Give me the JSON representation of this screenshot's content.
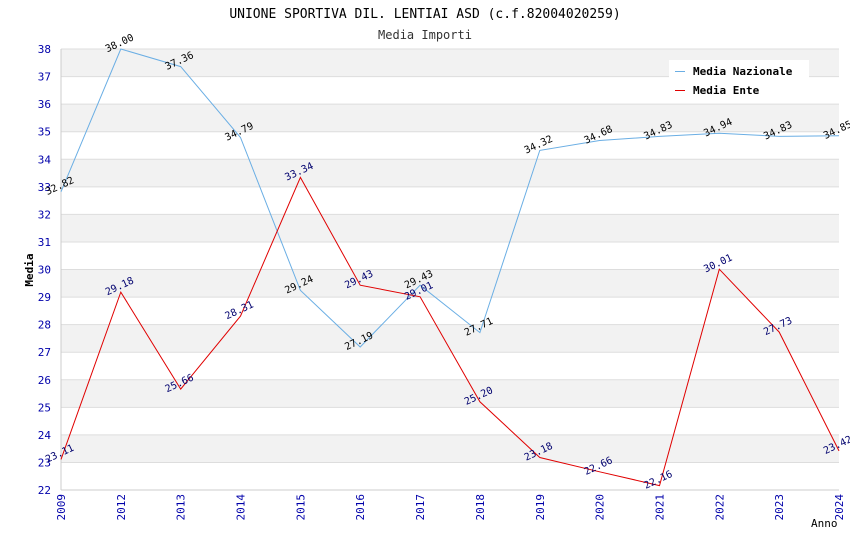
{
  "chart_data": {
    "type": "line",
    "title": "UNIONE SPORTIVA DIL. LENTIAI ASD (c.f.82004020259)",
    "subtitle": "Media Importi",
    "ylabel": "Media",
    "xlabel": "Anno",
    "categories": [
      "2009",
      "2012",
      "2013",
      "2014",
      "2015",
      "2016",
      "2017",
      "2018",
      "2019",
      "2020",
      "2021",
      "2022",
      "2023",
      "2024"
    ],
    "ylim": [
      22,
      38
    ],
    "yticks": [
      "22",
      "23",
      "24",
      "25",
      "26",
      "27",
      "28",
      "29",
      "30",
      "31",
      "32",
      "33",
      "34",
      "35",
      "36",
      "37",
      "38"
    ],
    "grid": true,
    "legend_position": "top-right",
    "series": [
      {
        "name": "Media Nazionale",
        "color": "#6aaee4",
        "label_color": "#000000",
        "values": [
          32.82,
          38.0,
          37.36,
          34.79,
          29.24,
          27.19,
          29.43,
          27.71,
          34.32,
          34.68,
          34.83,
          34.94,
          34.83,
          34.85
        ],
        "labels": [
          "32.82",
          "38.00",
          "37.36",
          "34.79",
          "29.24",
          "27.19",
          "29.43",
          "27.71",
          "34.32",
          "34.68",
          "34.83",
          "34.94",
          "34.83",
          "34.85"
        ]
      },
      {
        "name": "Media Ente",
        "color": "#e00000",
        "label_color": "#00006e",
        "values": [
          23.11,
          29.18,
          25.66,
          28.31,
          33.34,
          29.43,
          29.01,
          25.2,
          23.18,
          22.66,
          22.16,
          30.01,
          27.73,
          23.42
        ],
        "labels": [
          "23.11",
          "29.18",
          "25.66",
          "28.31",
          "33.34",
          "29.43",
          "29.01",
          "25.20",
          "23.18",
          "22.66",
          "22.16",
          "30.01",
          "27.73",
          "23.42"
        ]
      }
    ]
  }
}
